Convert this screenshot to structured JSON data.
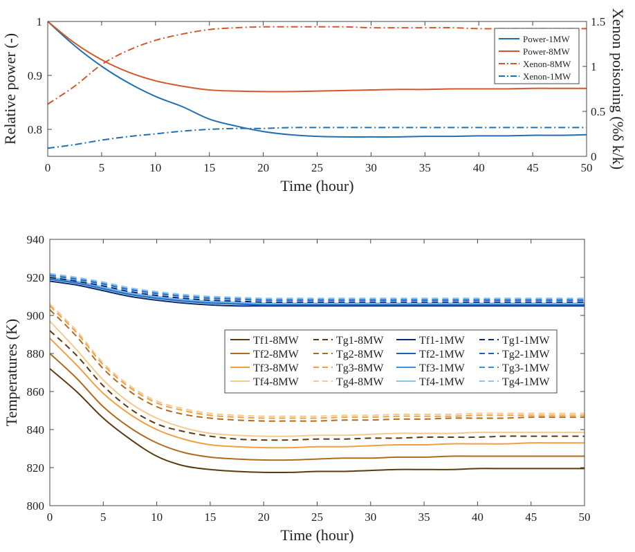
{
  "chart_data": [
    {
      "type": "line",
      "xlabel": "Time (hour)",
      "ylabel": "Relative power (-)",
      "ylabel_right": "Xenon poisoning (%δ k/k)",
      "xlim": [
        0,
        50
      ],
      "ylim": [
        0.75,
        1.0
      ],
      "ylim_right": [
        0,
        1.5
      ],
      "xticks": [
        "0",
        "5",
        "10",
        "15",
        "20",
        "25",
        "30",
        "35",
        "40",
        "45",
        "50"
      ],
      "yticks": [
        "0.8",
        "0.9",
        "1"
      ],
      "yticks_right": [
        "0",
        "0.5",
        "1",
        "1.5"
      ],
      "legend_position": "top-right",
      "grid": false,
      "x": [
        0,
        2.5,
        5,
        7.5,
        10,
        12.5,
        15,
        17.5,
        20,
        22.5,
        25,
        27.5,
        30,
        32.5,
        35,
        37.5,
        40,
        42.5,
        45,
        47.5,
        50
      ],
      "series": [
        {
          "name": "Power-1MW",
          "axis": "left",
          "style": "solid",
          "color": "#1f6fb2",
          "values": [
            1.0,
            0.955,
            0.917,
            0.886,
            0.861,
            0.842,
            0.819,
            0.806,
            0.796,
            0.79,
            0.787,
            0.786,
            0.786,
            0.786,
            0.787,
            0.787,
            0.788,
            0.788,
            0.789,
            0.789,
            0.79
          ]
        },
        {
          "name": "Power-8MW",
          "axis": "left",
          "style": "solid",
          "color": "#d2572a",
          "values": [
            1.0,
            0.96,
            0.929,
            0.906,
            0.89,
            0.88,
            0.873,
            0.871,
            0.87,
            0.87,
            0.871,
            0.872,
            0.873,
            0.874,
            0.874,
            0.875,
            0.875,
            0.875,
            0.876,
            0.876,
            0.876
          ]
        },
        {
          "name": "Xenon-8MW",
          "axis": "right",
          "style": "dashdot",
          "color": "#d2572a",
          "values": [
            0.58,
            0.78,
            1.02,
            1.18,
            1.29,
            1.36,
            1.41,
            1.43,
            1.44,
            1.44,
            1.44,
            1.44,
            1.43,
            1.43,
            1.43,
            1.43,
            1.42,
            1.42,
            1.42,
            1.42,
            1.42
          ]
        },
        {
          "name": "Xenon-1MW",
          "axis": "right",
          "style": "dashdot",
          "color": "#1f6fb2",
          "values": [
            0.09,
            0.13,
            0.18,
            0.22,
            0.25,
            0.28,
            0.3,
            0.31,
            0.31,
            0.32,
            0.32,
            0.32,
            0.32,
            0.32,
            0.32,
            0.32,
            0.32,
            0.32,
            0.32,
            0.32,
            0.32
          ]
        }
      ]
    },
    {
      "type": "line",
      "xlabel": "Time (hour)",
      "ylabel": "Temperatures (K)",
      "xlim": [
        0,
        50
      ],
      "ylim": [
        800,
        940
      ],
      "xticks": [
        "0",
        "5",
        "10",
        "15",
        "20",
        "25",
        "30",
        "35",
        "40",
        "45",
        "50"
      ],
      "yticks": [
        "800",
        "820",
        "840",
        "860",
        "880",
        "900",
        "920",
        "940"
      ],
      "legend_position": "center-right",
      "legend_columns": 4,
      "grid": false,
      "x": [
        0,
        2.5,
        5,
        7.5,
        10,
        12.5,
        15,
        17.5,
        20,
        22.5,
        25,
        27.5,
        30,
        32.5,
        35,
        37.5,
        40,
        42.5,
        45,
        47.5,
        50
      ],
      "series": [
        {
          "name": "Tf1-8MW",
          "style": "solid",
          "color": "#5c3a10",
          "values": [
            872,
            860,
            846,
            835,
            826,
            821,
            819,
            818,
            817.5,
            817.5,
            818,
            818,
            818.5,
            819,
            819,
            819,
            819.5,
            819.5,
            819.5,
            819.5,
            819.5
          ]
        },
        {
          "name": "Tf2-8MW",
          "style": "solid",
          "color": "#b06a1c",
          "values": [
            880,
            867,
            852,
            841,
            833,
            828,
            825.5,
            824.5,
            824,
            824,
            824.5,
            825,
            825,
            825.5,
            825.5,
            826,
            826,
            826,
            826,
            826,
            826
          ]
        },
        {
          "name": "Tf3-8MW",
          "style": "solid",
          "color": "#f0a040",
          "values": [
            888,
            874,
            859,
            848,
            840,
            835,
            832,
            831,
            830.5,
            830.5,
            831,
            831,
            831.5,
            832,
            832,
            832.5,
            832.5,
            832.5,
            833,
            833,
            833
          ]
        },
        {
          "name": "Tf4-8MW",
          "style": "solid",
          "color": "#f7c98f",
          "values": [
            897,
            882,
            866,
            854,
            846,
            841,
            838,
            837,
            836.5,
            836.5,
            837,
            837,
            837.5,
            838,
            838,
            838,
            838.5,
            838.5,
            838.5,
            838.5,
            838.5
          ]
        },
        {
          "name": "Tg1-8MW",
          "style": "dashed",
          "color": "#5c3a10",
          "values": [
            892,
            879,
            863,
            851,
            843,
            839,
            836.5,
            835,
            834.5,
            834.5,
            835,
            835,
            835.5,
            835.5,
            836,
            836,
            836,
            836.5,
            836.5,
            836.5,
            836.5
          ]
        },
        {
          "name": "Tg2-8MW",
          "style": "dashed",
          "color": "#b06a1c",
          "values": [
            903,
            889,
            872,
            860,
            852,
            848,
            846,
            845,
            844.5,
            844.5,
            844.5,
            845,
            845,
            845.5,
            845.5,
            846,
            846,
            846,
            846.5,
            846.5,
            846.5
          ]
        },
        {
          "name": "Tg3-8MW",
          "style": "dashed",
          "color": "#f0a040",
          "values": [
            905,
            891,
            874,
            862,
            854,
            850,
            847.5,
            846.5,
            846,
            846,
            846,
            846.5,
            846.5,
            847,
            847,
            847,
            847.5,
            847.5,
            847.5,
            847.5,
            847.5
          ]
        },
        {
          "name": "Tg4-8MW",
          "style": "dashed",
          "color": "#f7c98f",
          "values": [
            906,
            892,
            875,
            863,
            855,
            851,
            848.5,
            847.5,
            847,
            847,
            847,
            847.5,
            847.5,
            848,
            848,
            848,
            848.5,
            848.5,
            848.5,
            848.5,
            848.5
          ]
        },
        {
          "name": "Tf1-1MW",
          "style": "solid",
          "color": "#0b2a6b",
          "values": [
            918,
            916,
            913,
            910,
            908,
            906.5,
            905.5,
            905,
            905,
            905,
            905,
            905,
            905,
            905,
            905,
            905,
            905,
            905,
            905,
            905,
            905
          ]
        },
        {
          "name": "Tf2-1MW",
          "style": "solid",
          "color": "#1560bd",
          "values": [
            919,
            917,
            914,
            911,
            909,
            907.5,
            906.5,
            906,
            905.5,
            905.5,
            905.5,
            905.5,
            905.5,
            905.5,
            905.5,
            905.5,
            905.5,
            905.5,
            905.5,
            905.5,
            905.5
          ]
        },
        {
          "name": "Tf3-1MW",
          "style": "solid",
          "color": "#3f8fe0",
          "values": [
            919.5,
            917.5,
            914.5,
            911.5,
            909.5,
            908,
            907,
            906.5,
            906,
            906,
            906,
            906,
            906,
            906,
            906,
            906,
            906,
            906,
            906,
            906,
            906
          ]
        },
        {
          "name": "Tf4-1MW",
          "style": "solid",
          "color": "#8cc4f0",
          "values": [
            920,
            918,
            915,
            912,
            910,
            908.5,
            907.5,
            907,
            906.5,
            906.5,
            906.5,
            906.5,
            906.5,
            906.5,
            906.5,
            906.5,
            906.5,
            906.5,
            906.5,
            906.5,
            906.5
          ]
        },
        {
          "name": "Tg1-1MW",
          "style": "dashed",
          "color": "#0b2a6b",
          "values": [
            920,
            918,
            915.5,
            912.5,
            910.5,
            909,
            908,
            907.5,
            907,
            907,
            907,
            907,
            907,
            907,
            907,
            907,
            907,
            907,
            907,
            907,
            907
          ]
        },
        {
          "name": "Tg2-1MW",
          "style": "dashed",
          "color": "#1560bd",
          "values": [
            921,
            919,
            916.5,
            913.5,
            911.5,
            910,
            909,
            908.5,
            908,
            908,
            908,
            908,
            908,
            908,
            908,
            908,
            908,
            908,
            908,
            908,
            908
          ]
        },
        {
          "name": "Tg3-1MW",
          "style": "dashed",
          "color": "#3f8fe0",
          "values": [
            921.5,
            919.5,
            917,
            914,
            912,
            910.5,
            909.5,
            909,
            908.5,
            908.5,
            908.5,
            908.5,
            908.5,
            908.5,
            908.5,
            908.5,
            908.5,
            908.5,
            908.5,
            908.5,
            908.5
          ]
        },
        {
          "name": "Tg4-1MW",
          "style": "dashed",
          "color": "#8cc4f0",
          "values": [
            922,
            920,
            917.5,
            914.5,
            912.5,
            911,
            910,
            909.5,
            909,
            909,
            909,
            909,
            909,
            909,
            909,
            909,
            909,
            909,
            909,
            909,
            909
          ]
        }
      ]
    }
  ]
}
